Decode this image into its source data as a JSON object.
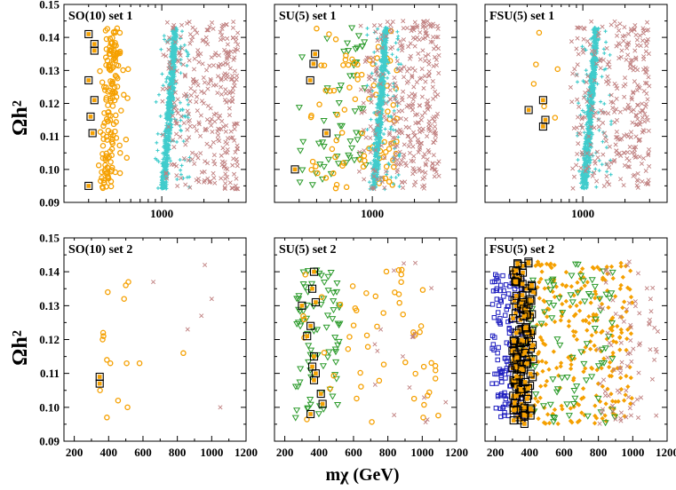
{
  "figure": {
    "y_axis_label": "Ωh²",
    "x_axis_label": "mχ (GeV)"
  },
  "colors": {
    "orange": "#f5a000",
    "cyan": "#40cccc",
    "pink": "#c08080",
    "green": "#2a9a2a",
    "blue": "#1f1fc0",
    "black": "#000000"
  },
  "chart_data": [
    {
      "type": "scatter",
      "title": "SO(10) set 1",
      "xscale": "log",
      "xlim": [
        200,
        4000
      ],
      "ylim": [
        0.09,
        0.15
      ],
      "y_ticks": [
        "0.09",
        "0.10",
        "0.11",
        "0.12",
        "0.13",
        "0.14",
        "0.15"
      ],
      "x_ticks": [
        "1000"
      ],
      "series": [
        {
          "name": "orange circles",
          "marker": "circle",
          "color": "orange",
          "seed": 11,
          "n": 160,
          "x": [
            360,
            520
          ],
          "y": [
            0.094,
            0.143
          ],
          "trend": 0.35,
          "jitter": 80
        },
        {
          "name": "cyan band",
          "marker": "plus",
          "color": "cyan",
          "seed": 12,
          "n": 700,
          "x": [
            900,
            1400
          ],
          "y": [
            0.094,
            0.143
          ],
          "trend": 0.45,
          "jitter": 90
        },
        {
          "name": "pink crosses",
          "marker": "cross",
          "color": "pink",
          "seed": 13,
          "n": 320,
          "x": [
            1000,
            3500
          ],
          "y": [
            0.094,
            0.145
          ],
          "trend": 0,
          "jitter": 0
        },
        {
          "name": "black squares",
          "marker": "square",
          "color": "black",
          "points": [
            [
              300,
              0.141
            ],
            [
              330,
              0.136
            ],
            [
              330,
              0.138
            ],
            [
              300,
              0.127
            ],
            [
              330,
              0.121
            ],
            [
              310,
              0.116
            ],
            [
              320,
              0.111
            ],
            [
              300,
              0.095
            ]
          ]
        }
      ]
    },
    {
      "type": "scatter",
      "title": "SU(5) set 1",
      "xscale": "log",
      "xlim": [
        200,
        4000
      ],
      "ylim": [
        0.09,
        0.15
      ],
      "y_ticks": [],
      "x_ticks": [
        "1000"
      ],
      "series": [
        {
          "name": "green triangles",
          "marker": "triangle",
          "color": "green",
          "seed": 21,
          "n": 60,
          "x": [
            300,
            900
          ],
          "y": [
            0.094,
            0.143
          ],
          "trend": 0,
          "jitter": 0
        },
        {
          "name": "orange circles",
          "marker": "circle",
          "color": "orange",
          "seed": 22,
          "n": 90,
          "x": [
            350,
            1500
          ],
          "y": [
            0.094,
            0.143
          ],
          "trend": 0,
          "jitter": 0
        },
        {
          "name": "cyan band",
          "marker": "plus",
          "color": "cyan",
          "seed": 23,
          "n": 700,
          "x": [
            900,
            1400
          ],
          "y": [
            0.094,
            0.143
          ],
          "trend": 0.45,
          "jitter": 90
        },
        {
          "name": "pink crosses",
          "marker": "cross",
          "color": "pink",
          "seed": 24,
          "n": 340,
          "x": [
            800,
            3000
          ],
          "y": [
            0.094,
            0.145
          ],
          "trend": 0,
          "jitter": 0
        },
        {
          "name": "black squares",
          "marker": "square",
          "color": "black",
          "points": [
            [
              390,
              0.135
            ],
            [
              380,
              0.132
            ],
            [
              360,
              0.127
            ],
            [
              470,
              0.111
            ],
            [
              280,
              0.1
            ]
          ]
        }
      ]
    },
    {
      "type": "scatter",
      "title": "FSU(5) set 1",
      "xscale": "log",
      "xlim": [
        200,
        4000
      ],
      "ylim": [
        0.09,
        0.15
      ],
      "y_ticks": [],
      "x_ticks": [
        "1000"
      ],
      "series": [
        {
          "name": "orange circles",
          "marker": "circle",
          "color": "orange",
          "seed": 31,
          "n": 6,
          "x": [
            400,
            700
          ],
          "y": [
            0.115,
            0.142
          ],
          "trend": 0,
          "jitter": 0
        },
        {
          "name": "cyan band",
          "marker": "plus",
          "color": "cyan",
          "seed": 32,
          "n": 650,
          "x": [
            900,
            1400
          ],
          "y": [
            0.094,
            0.143
          ],
          "trend": 0.45,
          "jitter": 90
        },
        {
          "name": "pink crosses",
          "marker": "cross",
          "color": "pink",
          "seed": 33,
          "n": 300,
          "x": [
            800,
            3000
          ],
          "y": [
            0.094,
            0.145
          ],
          "trend": 0,
          "jitter": 0
        },
        {
          "name": "black squares",
          "marker": "square",
          "color": "black",
          "points": [
            [
              410,
              0.118
            ],
            [
              520,
              0.121
            ],
            [
              540,
              0.115
            ],
            [
              520,
              0.113
            ]
          ]
        }
      ]
    },
    {
      "type": "scatter",
      "title": "SO(10) set 2",
      "xscale": "linear",
      "xlim": [
        140,
        1200
      ],
      "ylim": [
        0.09,
        0.15
      ],
      "y_ticks": [
        "0.09",
        "0.10",
        "0.11",
        "0.12",
        "0.13",
        "0.14",
        "0.15"
      ],
      "x_ticks": [
        "200",
        "400",
        "600",
        "800",
        "1000",
        "1200"
      ],
      "series": [
        {
          "name": "orange circles",
          "marker": "circle",
          "color": "orange",
          "points": [
            [
              395,
              0.134
            ],
            [
              500,
              0.136
            ],
            [
              515,
              0.137
            ],
            [
              490,
              0.132
            ],
            [
              370,
              0.121
            ],
            [
              368,
              0.122
            ],
            [
              365,
              0.12
            ],
            [
              390,
              0.114
            ],
            [
              410,
              0.113
            ],
            [
              505,
              0.113
            ],
            [
              580,
              0.113
            ],
            [
              835,
              0.116
            ],
            [
              350,
              0.105
            ],
            [
              455,
              0.102
            ],
            [
              510,
              0.1
            ],
            [
              390,
              0.097
            ]
          ]
        },
        {
          "name": "pink crosses",
          "marker": "cross",
          "color": "pink",
          "points": [
            [
              660,
              0.137
            ],
            [
              960,
              0.142
            ],
            [
              1000,
              0.132
            ],
            [
              940,
              0.127
            ],
            [
              860,
              0.123
            ],
            [
              1050,
              0.1
            ]
          ]
        },
        {
          "name": "black squares",
          "marker": "square",
          "color": "black",
          "points": [
            [
              348,
              0.109
            ],
            [
              348,
              0.107
            ]
          ]
        }
      ]
    },
    {
      "type": "scatter",
      "title": "SU(5) set 2",
      "xscale": "linear",
      "xlim": [
        140,
        1200
      ],
      "ylim": [
        0.09,
        0.15
      ],
      "y_ticks": [],
      "x_ticks": [
        "200",
        "400",
        "600",
        "800",
        "1000",
        "1200"
      ],
      "series": [
        {
          "name": "green triangles",
          "marker": "triangle",
          "color": "green",
          "seed": 51,
          "n": 80,
          "x": [
            260,
            520
          ],
          "y": [
            0.095,
            0.143
          ],
          "trend": 0,
          "jitter": 0
        },
        {
          "name": "orange circles",
          "marker": "circle",
          "color": "orange",
          "seed": 52,
          "n": 55,
          "x": [
            300,
            1100
          ],
          "y": [
            0.095,
            0.143
          ],
          "trend": 0,
          "jitter": 0
        },
        {
          "name": "pink crosses",
          "marker": "cross",
          "color": "pink",
          "seed": 53,
          "n": 18,
          "x": [
            700,
            1150
          ],
          "y": [
            0.095,
            0.143
          ],
          "trend": 0,
          "jitter": 0
        },
        {
          "name": "black squares",
          "marker": "square",
          "color": "black",
          "points": [
            [
              370,
              0.14
            ],
            [
              360,
              0.135
            ],
            [
              380,
              0.131
            ],
            [
              300,
              0.13
            ],
            [
              350,
              0.124
            ],
            [
              330,
              0.121
            ],
            [
              370,
              0.115
            ],
            [
              360,
              0.112
            ],
            [
              380,
              0.11
            ],
            [
              370,
              0.108
            ],
            [
              410,
              0.104
            ],
            [
              420,
              0.101
            ],
            [
              350,
              0.098
            ]
          ]
        }
      ]
    },
    {
      "type": "scatter",
      "title": "FSU(5) set 2",
      "xscale": "linear",
      "xlim": [
        140,
        1200
      ],
      "ylim": [
        0.09,
        0.15
      ],
      "y_ticks": [],
      "x_ticks": [
        "200",
        "400",
        "600",
        "800",
        "1000",
        "1200"
      ],
      "series": [
        {
          "name": "blue squares",
          "marker": "opensquare",
          "color": "blue",
          "seed": 61,
          "n": 150,
          "x": [
            180,
            360
          ],
          "y": [
            0.095,
            0.14
          ],
          "trend": 0,
          "jitter": 0
        },
        {
          "name": "orange diamonds",
          "marker": "diamond",
          "color": "orange",
          "seed": 62,
          "n": 260,
          "x": [
            420,
            1000
          ],
          "y": [
            0.095,
            0.143
          ],
          "trend": 0,
          "jitter": 0
        },
        {
          "name": "green triangles",
          "marker": "triangle",
          "color": "green",
          "seed": 63,
          "n": 90,
          "x": [
            350,
            900
          ],
          "y": [
            0.095,
            0.143
          ],
          "trend": 0,
          "jitter": 0
        },
        {
          "name": "pink crosses",
          "marker": "cross",
          "color": "pink",
          "seed": 64,
          "n": 80,
          "x": [
            800,
            1150
          ],
          "y": [
            0.095,
            0.143
          ],
          "trend": 0,
          "jitter": 0
        },
        {
          "name": "black squares",
          "marker": "square",
          "color": "black",
          "seed": 65,
          "n": 140,
          "x": [
            300,
            420
          ],
          "y": [
            0.095,
            0.143
          ],
          "trend": 0,
          "jitter": 0
        }
      ]
    }
  ]
}
